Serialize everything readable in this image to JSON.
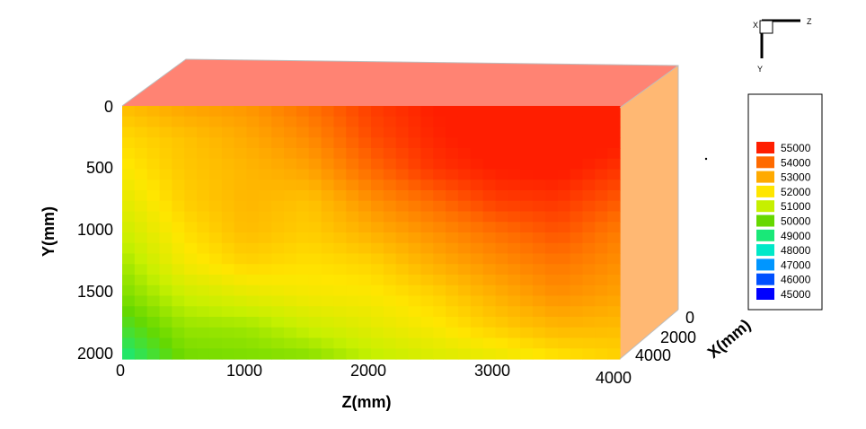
{
  "chart_data": {
    "type": "heatmap",
    "subtype": "3d-contour-box",
    "colormap": "rainbow",
    "x_axis": {
      "label": "Z(mm)",
      "ticks": [
        "0",
        "1000",
        "2000",
        "3000",
        "4000"
      ],
      "range": [
        0,
        4000
      ]
    },
    "y_axis": {
      "label": "Y(mm)",
      "ticks": [
        "0",
        "500",
        "1000",
        "1500",
        "2000"
      ],
      "range": [
        0,
        2000
      ],
      "inverted": true
    },
    "depth_axis": {
      "label": "X(mm)",
      "ticks": [
        "0",
        "2000",
        "4000"
      ],
      "range": [
        0,
        4000
      ]
    },
    "z_grid": [
      0,
      500,
      1000,
      1500,
      2000,
      2500,
      3000,
      3500,
      4000
    ],
    "y_grid": [
      0,
      250,
      500,
      750,
      1000,
      1250,
      1500,
      1750,
      2000
    ],
    "values": [
      [
        52700,
        53100,
        53300,
        53900,
        54600,
        55000,
        55200,
        55300,
        55300
      ],
      [
        52200,
        52600,
        53000,
        53500,
        54400,
        54900,
        55200,
        55300,
        55100
      ],
      [
        51900,
        52500,
        52800,
        53100,
        54000,
        54700,
        55000,
        55100,
        54700
      ],
      [
        51500,
        52400,
        52800,
        52600,
        53400,
        54000,
        54600,
        54700,
        54200
      ],
      [
        51100,
        52100,
        52700,
        52400,
        52900,
        53400,
        53900,
        54300,
        53700
      ],
      [
        50600,
        51800,
        52300,
        52100,
        52300,
        52900,
        53400,
        53800,
        53400
      ],
      [
        50200,
        51100,
        51500,
        51800,
        51900,
        52300,
        52900,
        53400,
        53100
      ],
      [
        49600,
        50500,
        50600,
        51100,
        51500,
        51900,
        52400,
        52800,
        52700
      ],
      [
        48900,
        50100,
        50200,
        50300,
        50900,
        51300,
        51600,
        52000,
        52300
      ]
    ],
    "legend": {
      "levels": [
        55000,
        54000,
        53000,
        52000,
        51000,
        50000,
        49000,
        48000,
        47000,
        46000,
        45000
      ],
      "labels": [
        "55000",
        "54000",
        "53000",
        "52000",
        "51000",
        "50000",
        "49000",
        "48000",
        "47000",
        "46000",
        "45000"
      ],
      "colors": [
        "#ff1e00",
        "#ff6a00",
        "#ffaa00",
        "#ffe600",
        "#c6f000",
        "#66d800",
        "#19e878",
        "#00e8c8",
        "#0096ff",
        "#0050ff",
        "#0000ff"
      ]
    },
    "orientation_triad": {
      "labels": [
        "X",
        "Y",
        "Z"
      ]
    },
    "grid": false
  }
}
